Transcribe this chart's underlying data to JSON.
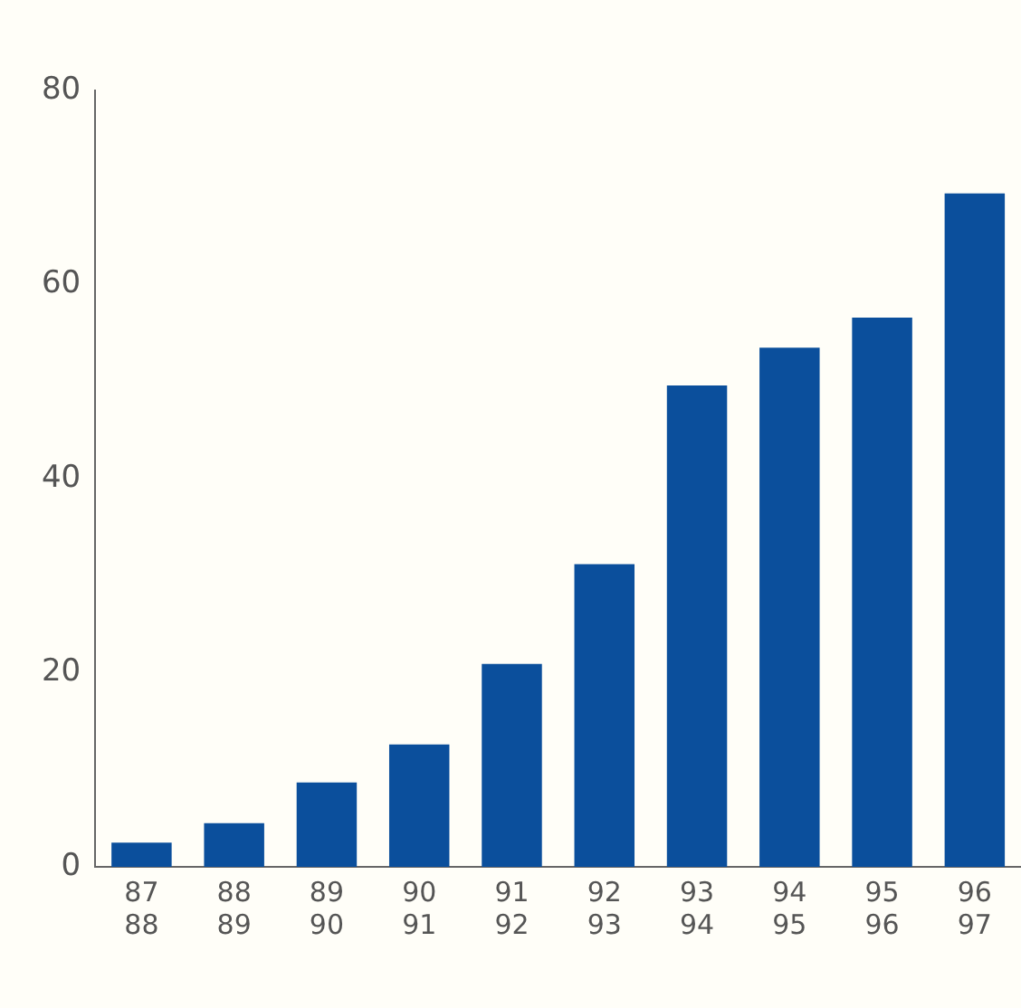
{
  "chart_data": {
    "type": "bar",
    "categories": [
      "87\n88",
      "88\n89",
      "89\n90",
      "90\n91",
      "91\n92",
      "92\n93",
      "93\n94",
      "94\n95",
      "95\n96",
      "96\n97"
    ],
    "series": [
      {
        "color": "#0b4f9c",
        "values": [
          2.5,
          4.5,
          8.7,
          12.6,
          20.9,
          31.2,
          49.6,
          53.5,
          56.6,
          69.4
        ]
      }
    ],
    "ylim": [
      0,
      80
    ],
    "yticks": [
      0,
      20,
      40,
      60,
      80
    ],
    "grid": false,
    "legend": false
  }
}
